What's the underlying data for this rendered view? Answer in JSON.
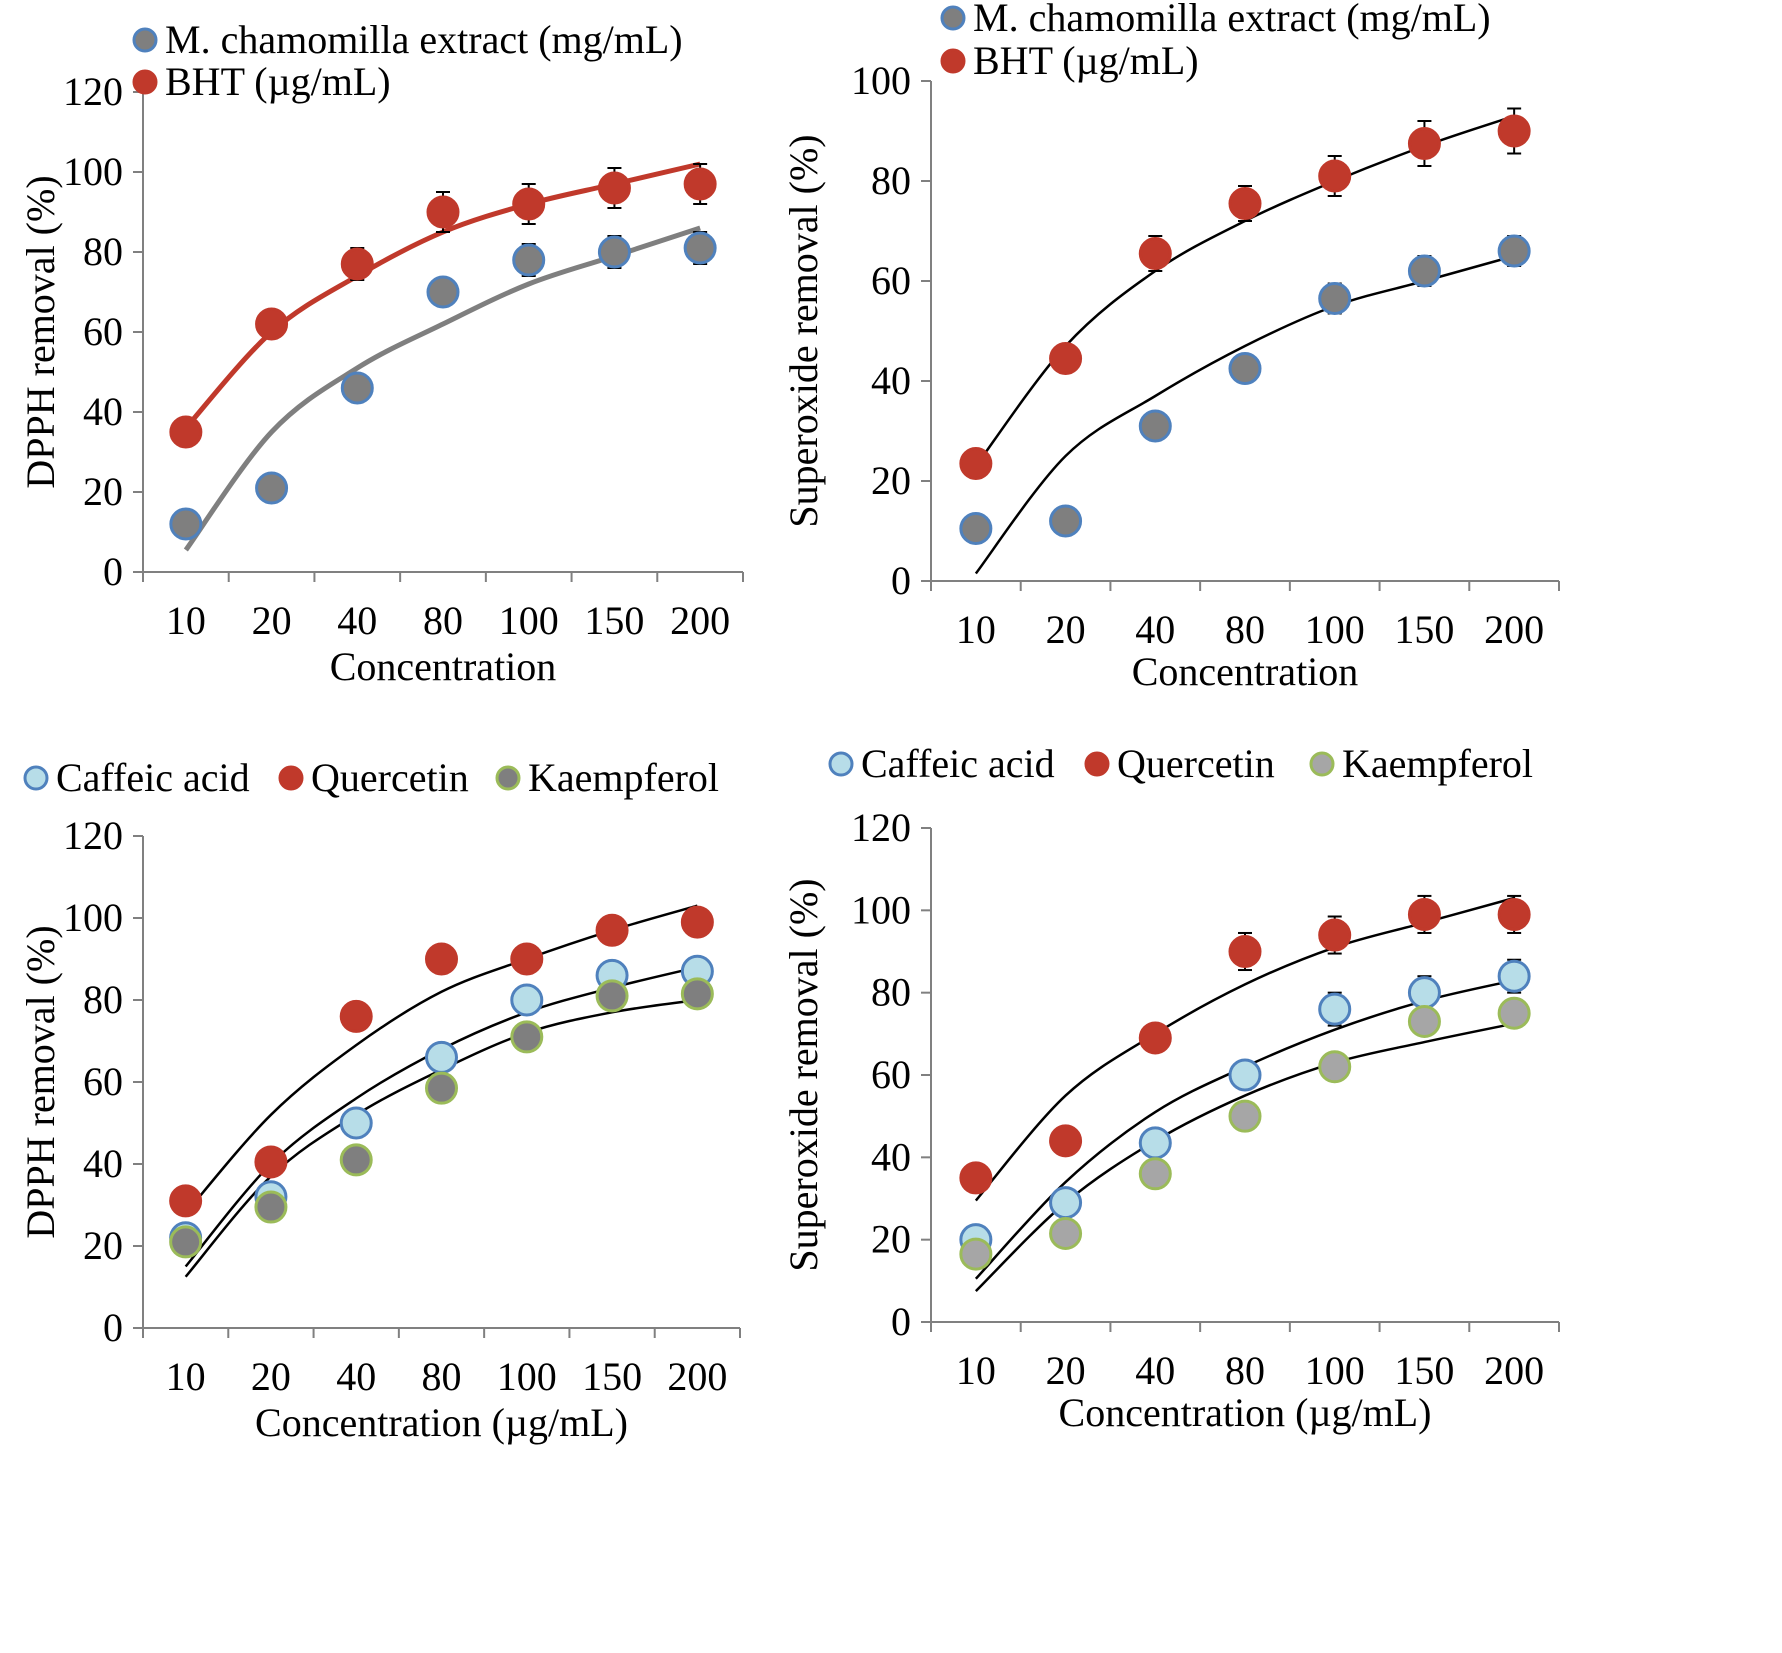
{
  "chart_data": [
    {
      "type": "scatter",
      "panel": "top-left",
      "categories": [
        "10",
        "20",
        "40",
        "80",
        "100",
        "150",
        "200"
      ],
      "xlabel": "Concentration",
      "ylabel": "DPPH removal (%)",
      "ylim": [
        0,
        120
      ],
      "yticks": [
        0,
        20,
        40,
        60,
        80,
        100,
        120
      ],
      "legend_position": "top-left",
      "series": [
        {
          "name": "M. chamomilla extract (mg/mL)",
          "values": [
            12,
            21,
            46,
            70,
            78,
            80,
            81
          ],
          "errors": [
            0,
            0,
            0,
            3,
            4,
            4,
            4
          ],
          "fit": [
            5.5,
            35,
            51,
            62,
            72,
            79,
            86
          ],
          "fill": "#7f7f7f",
          "stroke": "#4f81bd",
          "fit_color": "#7f7f7f"
        },
        {
          "name": "BHT (µg/mL)",
          "values": [
            35,
            62,
            77,
            90,
            92,
            96,
            97
          ],
          "errors": [
            0,
            0,
            4,
            5,
            5,
            5,
            5
          ],
          "fit": [
            36,
            60,
            74,
            85,
            92,
            97,
            102
          ],
          "fill": "#c0392b",
          "stroke": "#c0392b",
          "fit_color": "#c0392b"
        }
      ]
    },
    {
      "type": "scatter",
      "panel": "top-right",
      "categories": [
        "10",
        "20",
        "40",
        "80",
        "100",
        "150",
        "200"
      ],
      "xlabel": "Concentration",
      "ylabel": "Superoxide removal (%)",
      "ylim": [
        0,
        100
      ],
      "yticks": [
        0,
        20,
        40,
        60,
        80,
        100
      ],
      "legend_position": "top-left",
      "series": [
        {
          "name": "M. chamomilla extract (mg/mL)",
          "values": [
            10.5,
            12,
            31,
            42.5,
            56.5,
            62,
            66
          ],
          "errors": [
            0,
            0,
            0,
            0,
            3,
            3,
            3
          ],
          "fit": [
            1.5,
            25,
            37,
            47,
            55,
            60,
            65
          ],
          "fill": "#7f7f7f",
          "stroke": "#4f81bd",
          "fit_color": "#000000"
        },
        {
          "name": "BHT (µg/mL)",
          "values": [
            23.5,
            44.5,
            65.5,
            75.5,
            81,
            87.5,
            90
          ],
          "errors": [
            0,
            0,
            3.5,
            3.5,
            4,
            4.5,
            4.5
          ],
          "fit": [
            23,
            47,
            62,
            72,
            80,
            87,
            93
          ],
          "fill": "#c0392b",
          "stroke": "#c0392b",
          "fit_color": "#000000"
        }
      ]
    },
    {
      "type": "scatter",
      "panel": "bottom-left",
      "categories": [
        "10",
        "20",
        "40",
        "80",
        "100",
        "150",
        "200"
      ],
      "xlabel": "Concentration (µg/mL)",
      "ylabel": "DPPH removal (%)",
      "ylim": [
        0,
        120
      ],
      "yticks": [
        0,
        20,
        40,
        60,
        80,
        100,
        120
      ],
      "legend_position": "top",
      "series": [
        {
          "name": "Caffeic acid",
          "values": [
            22,
            32,
            50,
            66,
            80,
            86,
            87
          ],
          "errors": [
            0,
            0,
            0,
            0,
            0,
            0,
            0
          ],
          "fit": [
            15,
            40,
            56,
            68,
            77,
            83,
            88
          ],
          "fill": "#b7dde8",
          "stroke": "#4f81bd",
          "fit_color": "#000000"
        },
        {
          "name": "Quercetin",
          "values": [
            31,
            40.5,
            76,
            90,
            90,
            97,
            99
          ],
          "errors": [
            0,
            0,
            0,
            0,
            0,
            0,
            0
          ],
          "fit": [
            28,
            52,
            69,
            82,
            90,
            97,
            103
          ],
          "fill": "#c0392b",
          "stroke": "#c0392b",
          "fit_color": "#000000"
        },
        {
          "name": "Kaempferol",
          "values": [
            21,
            29.5,
            41,
            58.5,
            71,
            81,
            81.5
          ],
          "errors": [
            0,
            0,
            0,
            0,
            0,
            0,
            0
          ],
          "fit": [
            12.5,
            37,
            52,
            63,
            72,
            77,
            80
          ],
          "fill": "#7f7f7f",
          "stroke": "#9bbb59",
          "fit_color": "#000000"
        }
      ]
    },
    {
      "type": "scatter",
      "panel": "bottom-right",
      "categories": [
        "10",
        "20",
        "40",
        "80",
        "100",
        "150",
        "200"
      ],
      "xlabel": "Concentration (µg/mL)",
      "ylabel": "Superoxide removal (%)",
      "ylim": [
        0,
        120
      ],
      "yticks": [
        0,
        20,
        40,
        60,
        80,
        100,
        120
      ],
      "legend_position": "top",
      "series": [
        {
          "name": "Caffeic acid",
          "values": [
            20,
            29,
            43.5,
            60,
            76,
            80,
            84
          ],
          "errors": [
            0,
            0,
            0,
            0,
            4,
            4,
            4
          ],
          "fit": [
            10.5,
            34,
            51,
            62,
            71,
            78,
            83
          ],
          "fill": "#b7dde8",
          "stroke": "#4f81bd",
          "fit_color": "#000000"
        },
        {
          "name": "Quercetin",
          "values": [
            35,
            44,
            69,
            90,
            94,
            99,
            99
          ],
          "errors": [
            0,
            0,
            3,
            4.5,
            4.5,
            4.5,
            4.5
          ],
          "fit": [
            29.5,
            55,
            70,
            82,
            91,
            97,
            103
          ],
          "fill": "#c0392b",
          "stroke": "#c0392b",
          "fit_color": "#000000"
        },
        {
          "name": "Kaempferol",
          "values": [
            16.5,
            21.5,
            36,
            50,
            62,
            73,
            75
          ],
          "errors": [
            0,
            0,
            0,
            0,
            0,
            3,
            3
          ],
          "fit": [
            7.5,
            29,
            44,
            55,
            63,
            68,
            72.5
          ],
          "fill": "#a6a6a6",
          "stroke": "#9bbb59",
          "fit_color": "#000000"
        }
      ]
    }
  ]
}
